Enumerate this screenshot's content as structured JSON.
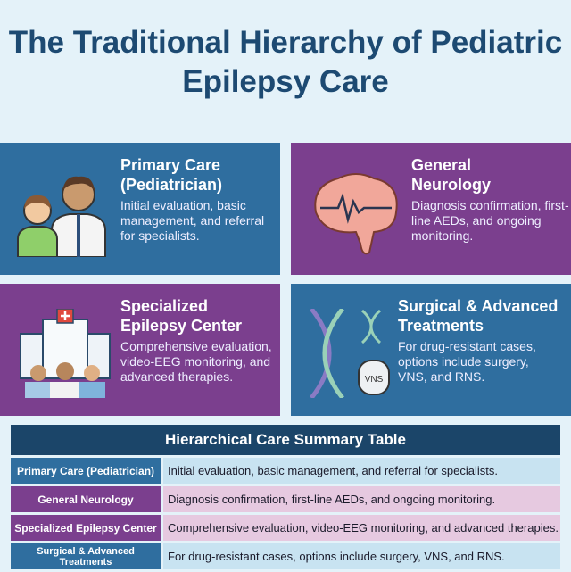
{
  "title": "The Traditional Hierarchy of Pediatric Epilepsy Care",
  "colors": {
    "blue": "#2f6e9f",
    "purple": "#7b3f8e",
    "navy": "#1b4569",
    "background": "#e4f2f9"
  },
  "cards": [
    {
      "title": "Primary Care (Pediatrician)",
      "text": "Initial evaluation, basic management, and referral for specialists.",
      "icon": "doctor-and-child-icon"
    },
    {
      "title": "General Neurology",
      "text": "Diagnosis confirmation, first-line AEDs, and ongoing monitoring.",
      "icon": "brain-icon"
    },
    {
      "title": "Specialized Epilepsy Center",
      "text": "Comprehensive evaluation, video-EEG monitoring, and advanced therapies.",
      "icon": "hospital-team-icon"
    },
    {
      "title": "Surgical & Advanced Treatments",
      "text": "For drug-resistant cases, options include surgery, VNS, and RNS.",
      "icon": "dna-vns-icon",
      "device_label": "VNS"
    }
  ],
  "table": {
    "title": "Hierarchical Care Summary Table",
    "rows": [
      {
        "level": "Primary Care (Pediatrician)",
        "desc": "Initial evaluation, basic management, and referral for specialists."
      },
      {
        "level": "General Neurology",
        "desc": "Diagnosis confirmation, first-line AEDs, and ongoing monitoring."
      },
      {
        "level": "Specialized Epilepsy Center",
        "desc": "Comprehensive evaluation, video-EEG monitoring, and advanced therapies."
      },
      {
        "level": "Surgical & Advanced Treatments",
        "desc": "For drug-resistant cases, options include surgery, VNS, and RNS."
      }
    ]
  }
}
